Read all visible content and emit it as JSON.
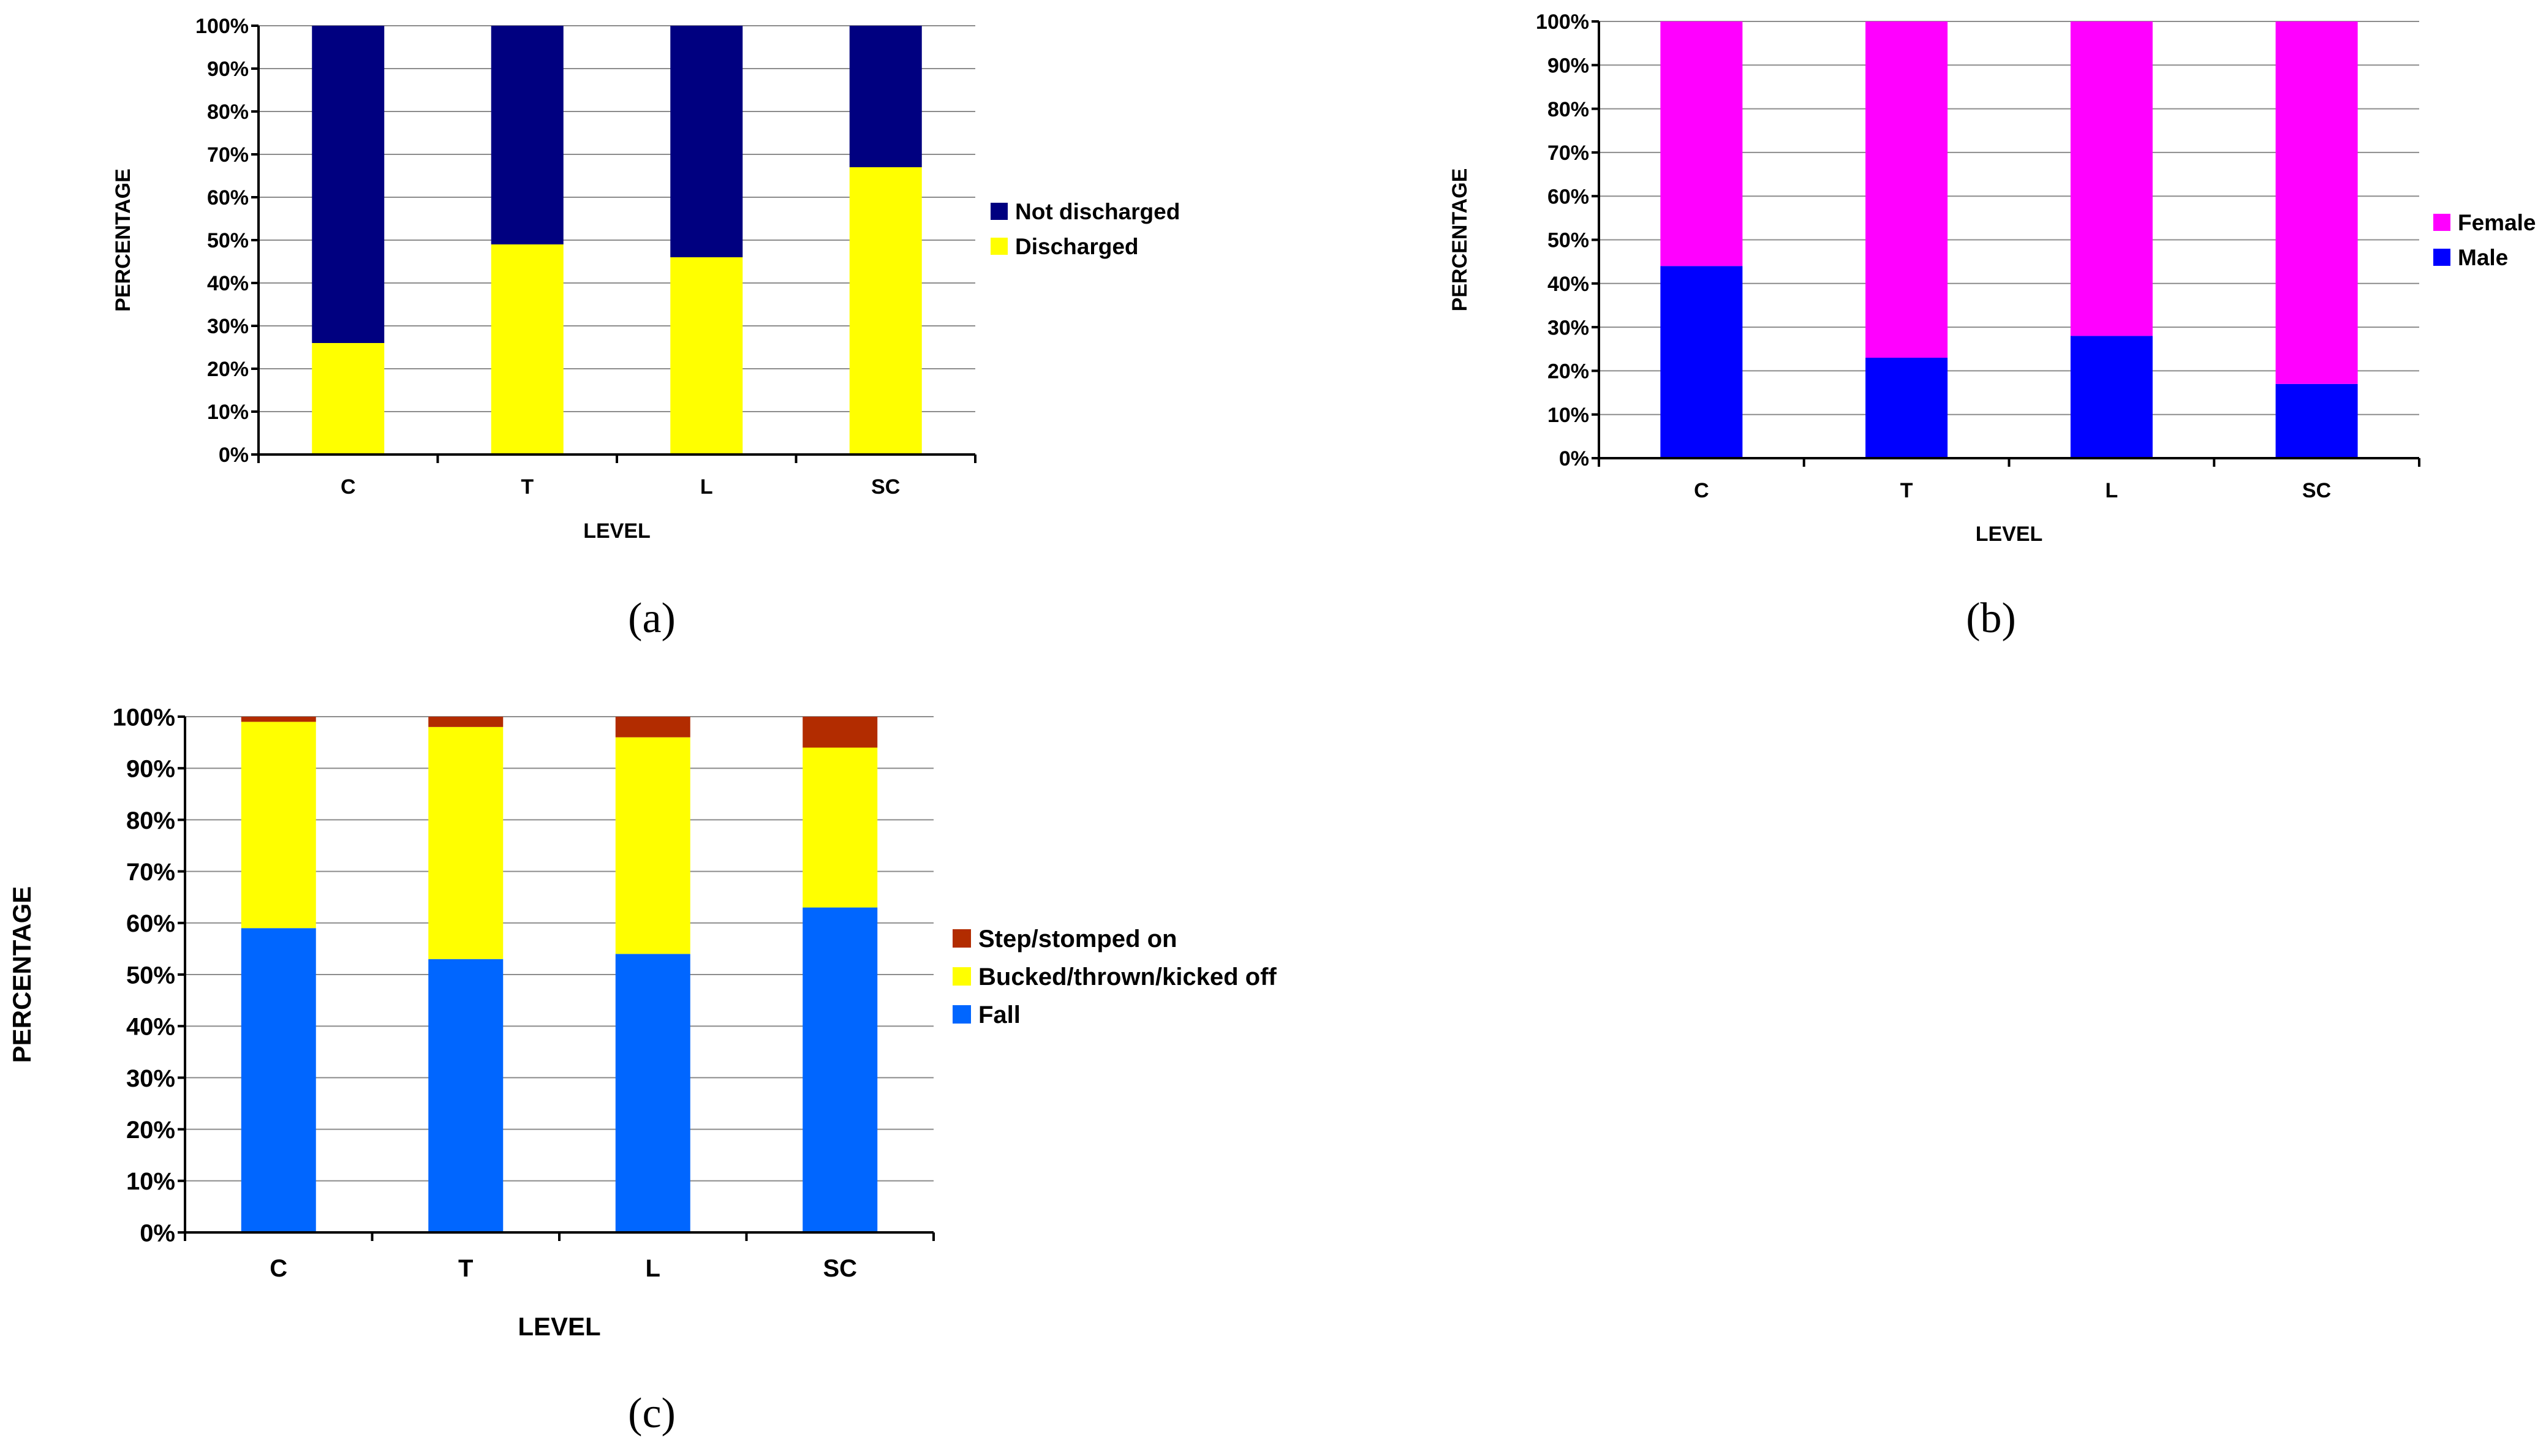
{
  "chart_data": [
    {
      "panel": "(a)",
      "type": "bar",
      "stacked": true,
      "categories": [
        "C",
        "T",
        "L",
        "SC"
      ],
      "series": [
        {
          "name": "Discharged",
          "color": "#ffff00",
          "values": [
            26,
            49,
            46,
            67
          ]
        },
        {
          "name": "Not discharged",
          "color": "#000080",
          "values": [
            74,
            51,
            54,
            33
          ]
        }
      ],
      "legend": [
        "Not discharged",
        "Discharged"
      ],
      "legend_position": "right",
      "xlabel": "LEVEL",
      "ylabel": "PERCENTAGE",
      "ylim": [
        0,
        100
      ],
      "yticks": [
        "0%",
        "10%",
        "20%",
        "30%",
        "40%",
        "50%",
        "60%",
        "70%",
        "80%",
        "90%",
        "100%"
      ],
      "grid": true
    },
    {
      "panel": "(b)",
      "type": "bar",
      "stacked": true,
      "categories": [
        "C",
        "T",
        "L",
        "SC"
      ],
      "series": [
        {
          "name": "Male",
          "color": "#0000ff",
          "values": [
            44,
            23,
            28,
            17
          ]
        },
        {
          "name": "Female",
          "color": "#ff00ff",
          "values": [
            56,
            77,
            72,
            83
          ]
        }
      ],
      "legend": [
        "Female",
        "Male"
      ],
      "legend_position": "right",
      "xlabel": "LEVEL",
      "ylabel": "PERCENTAGE",
      "ylim": [
        0,
        100
      ],
      "yticks": [
        "0%",
        "10%",
        "20%",
        "30%",
        "40%",
        "50%",
        "60%",
        "70%",
        "80%",
        "90%",
        "100%"
      ],
      "grid": true
    },
    {
      "panel": "(c)",
      "type": "bar",
      "stacked": true,
      "categories": [
        "C",
        "T",
        "L",
        "SC"
      ],
      "series": [
        {
          "name": "Fall",
          "color": "#0066ff",
          "values": [
            59,
            53,
            54,
            63
          ]
        },
        {
          "name": "Bucked/thrown/kicked off",
          "color": "#ffff00",
          "values": [
            40,
            45,
            42,
            31
          ]
        },
        {
          "name": "Step/stomped on",
          "color": "#b22c00",
          "values": [
            1,
            2,
            4,
            6
          ]
        }
      ],
      "legend": [
        "Step/stomped on",
        "Bucked/thrown/kicked off",
        "Fall"
      ],
      "legend_position": "right",
      "xlabel": "LEVEL",
      "ylabel": "PERCENTAGE",
      "ylim": [
        0,
        100
      ],
      "yticks": [
        "0%",
        "10%",
        "20%",
        "30%",
        "40%",
        "50%",
        "60%",
        "70%",
        "80%",
        "90%",
        "100%"
      ],
      "grid": true
    }
  ]
}
